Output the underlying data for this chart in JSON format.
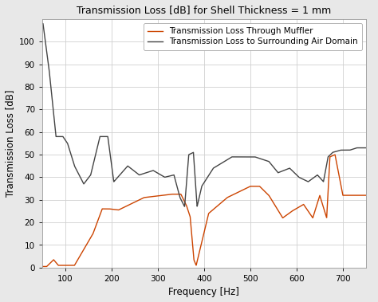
{
  "title": "Transmission Loss [dB] for Shell Thickness = 1 mm",
  "xlabel": "Frequency [Hz]",
  "ylabel": "Transmission Loss [dB]",
  "xlim": [
    50,
    750
  ],
  "ylim": [
    0,
    110
  ],
  "yticks": [
    0,
    10,
    20,
    30,
    40,
    50,
    60,
    70,
    80,
    90,
    100
  ],
  "xticks": [
    100,
    200,
    300,
    400,
    500,
    600,
    700
  ],
  "bg_color": "#ffffff",
  "fig_color": "#e8e8e8",
  "grid_color": "#d0d0d0",
  "orange_label": "Transmission Loss Through Muffler",
  "gray_label": "Transmission Loss to Surrounding Air Domain",
  "orange_color": "#cc4400",
  "gray_color": "#444444",
  "title_fontsize": 9.0,
  "label_fontsize": 8.5,
  "legend_fontsize": 7.5,
  "tick_fontsize": 7.5,
  "linewidth": 1.0
}
